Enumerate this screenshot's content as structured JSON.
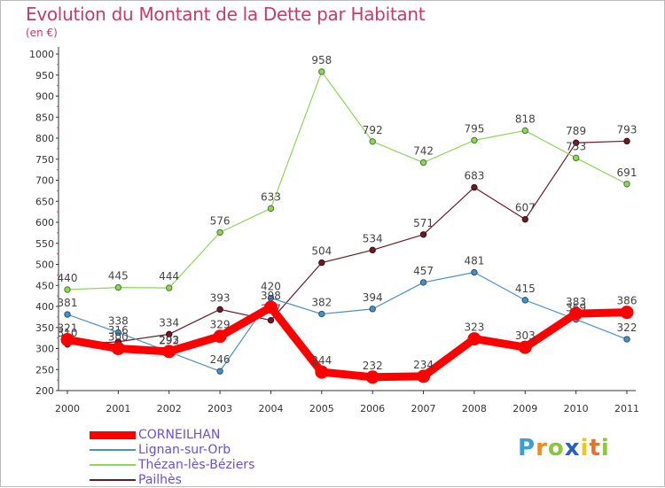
{
  "header": {
    "title": "Evolution du Montant de la Dette par Habitant",
    "subtitle": "(en €)"
  },
  "logo": {
    "letters": [
      "P",
      "r",
      "o",
      "x",
      "i",
      "t",
      "i"
    ],
    "colors": [
      "#3a9fd8",
      "#f08a1e",
      "#8cc63e",
      "#2a5fbf",
      "#f0c419",
      "#e8702a",
      "#8cc63e"
    ]
  },
  "chart_data": {
    "type": "line",
    "title": "Evolution du Montant de la Dette par Habitant",
    "subtitle": "(en €)",
    "xlabel": "",
    "ylabel": "",
    "x": [
      "2000",
      "2001",
      "2002",
      "2003",
      "2004",
      "2005",
      "2006",
      "2007",
      "2008",
      "2009",
      "2010",
      "2011"
    ],
    "ylim": [
      200,
      1000
    ],
    "yticks": [
      200,
      250,
      300,
      350,
      400,
      450,
      500,
      550,
      600,
      650,
      700,
      750,
      800,
      850,
      900,
      950,
      1000
    ],
    "grid": false,
    "legend": "bottom-left",
    "series": [
      {
        "name": "Pailhès",
        "color": "#6b1a28",
        "thick": false,
        "values": [
          310,
          316,
          334,
          393,
          367,
          504,
          534,
          571,
          683,
          607,
          789,
          793
        ],
        "labels": [
          "310",
          "316",
          "334",
          "393",
          "367",
          "504",
          "534",
          "571",
          "683",
          "607",
          "789",
          "793"
        ]
      },
      {
        "name": "Lignan-sur-Orb",
        "color": "#4a90c8",
        "thick": false,
        "values": [
          381,
          338,
          292,
          246,
          420,
          382,
          394,
          457,
          481,
          415,
          369,
          322
        ],
        "labels": [
          "381",
          "338",
          "292",
          "246",
          "420",
          "382",
          "394",
          "457",
          "481",
          "415",
          "369",
          "322"
        ]
      },
      {
        "name": "Thézan-lès-Béziers",
        "color": "#8cd65a",
        "thick": false,
        "values": [
          440,
          445,
          444,
          576,
          633,
          958,
          792,
          742,
          795,
          818,
          753,
          691
        ],
        "labels": [
          "440",
          "445",
          "444",
          "576",
          "633",
          "958",
          "792",
          "742",
          "795",
          "818",
          "753",
          "691"
        ]
      },
      {
        "name": "CORNEILHAN",
        "color": "#ff0000",
        "thick": true,
        "values": [
          321,
          300,
          293,
          329,
          398,
          244,
          232,
          234,
          323,
          303,
          383,
          386
        ],
        "labels": [
          "321",
          "300",
          "293",
          "329",
          "398",
          "244",
          "232",
          "234",
          "323",
          "303",
          "383",
          "386"
        ]
      }
    ],
    "legend_order": [
      "CORNEILHAN",
      "Lignan-sur-Orb",
      "Thézan-lès-Béziers",
      "Pailhès"
    ]
  }
}
